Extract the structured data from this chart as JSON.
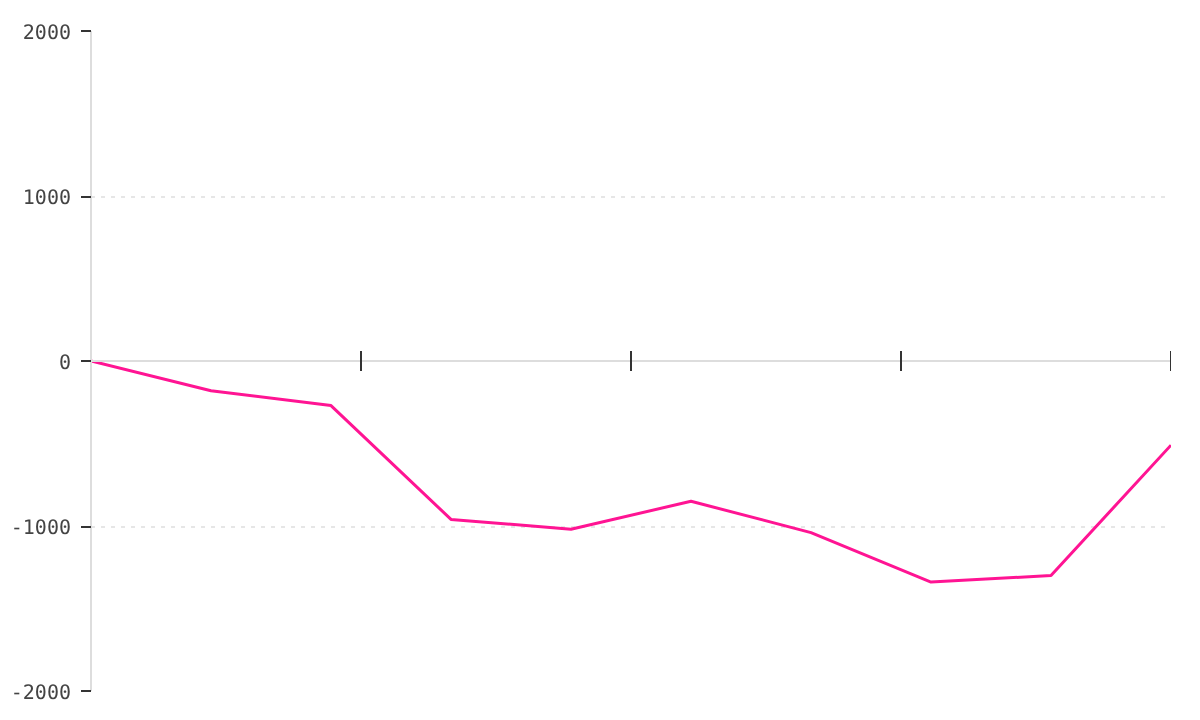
{
  "chart_data": {
    "type": "line",
    "categories": [
      null,
      null,
      null,
      null,
      null,
      null,
      null,
      null,
      null,
      null
    ],
    "series": [
      {
        "color": "#ff1493",
        "values": [
          0,
          -180,
          -270,
          -960,
          -1020,
          -850,
          -1040,
          -1340,
          -1300,
          -510
        ]
      }
    ],
    "ylim": [
      -2000,
      2000
    ],
    "yticks": [
      -2000,
      -1000,
      0,
      1000,
      2000
    ],
    "tick_labels": "y",
    "grid": "y",
    "line_style": "solid"
  }
}
